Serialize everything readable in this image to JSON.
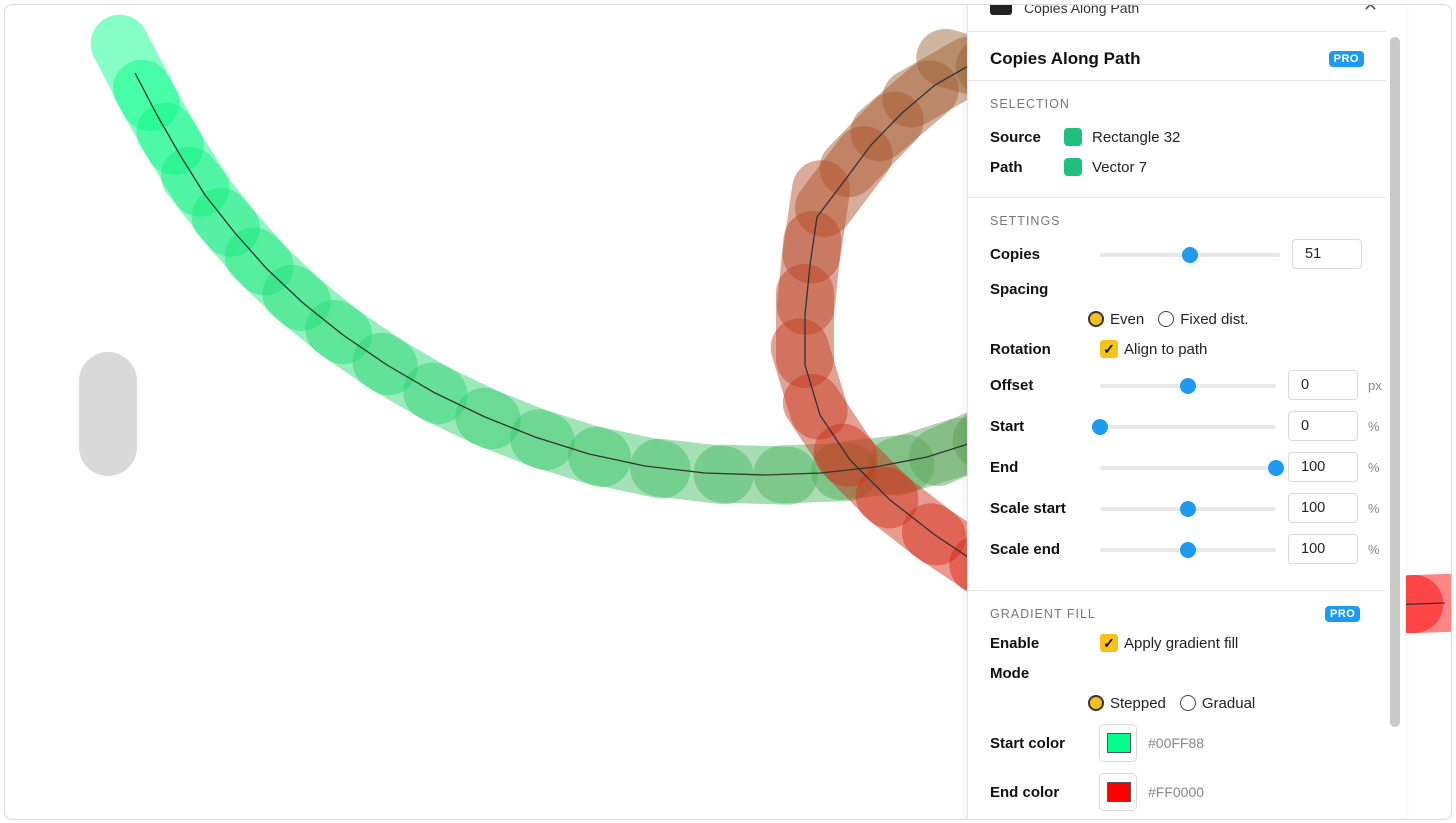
{
  "plugin": {
    "title_partial": "Copies Along Path",
    "name": "Copies Along Path",
    "badge": "PRO"
  },
  "selection": {
    "heading": "SELECTION",
    "source_label": "Source",
    "source_value": "Rectangle 32",
    "path_label": "Path",
    "path_value": "Vector 7"
  },
  "settings": {
    "heading": "SETTINGS",
    "copies_label": "Copies",
    "copies_value": "51",
    "copies_slider": 0.5,
    "spacing_label": "Spacing",
    "spacing_even": "Even",
    "spacing_fixed": "Fixed dist.",
    "rotation_label": "Rotation",
    "rotation_option": "Align to path",
    "offset_label": "Offset",
    "offset_value": "0",
    "offset_unit": "px",
    "offset_slider": 0.5,
    "start_label": "Start",
    "start_value": "0",
    "start_unit": "%",
    "start_slider": 0.0,
    "end_label": "End",
    "end_value": "100",
    "end_unit": "%",
    "end_slider": 1.0,
    "scale_start_label": "Scale start",
    "scale_start_value": "100",
    "scale_start_unit": "%",
    "scale_start_slider": 0.5,
    "scale_end_label": "Scale end",
    "scale_end_value": "100",
    "scale_end_unit": "%",
    "scale_end_slider": 0.5
  },
  "gradient": {
    "heading": "GRADIENT FILL",
    "badge": "PRO",
    "enable_label": "Enable",
    "enable_option": "Apply gradient fill",
    "mode_label": "Mode",
    "mode_stepped": "Stepped",
    "mode_gradual": "Gradual",
    "start_color_label": "Start color",
    "start_color": "#00FF88",
    "end_color_label": "End color",
    "end_color": "#FF0000"
  },
  "canvas": {
    "source_color": "#d9d9d9",
    "copies_count": 51
  }
}
